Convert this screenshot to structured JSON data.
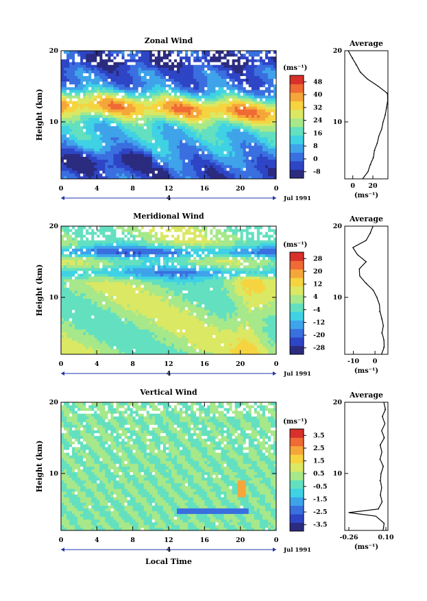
{
  "figure": {
    "xlabel": "Local Time",
    "date_label": "Jul 1991",
    "x_ticks": [
      "0",
      "4",
      "8",
      "12",
      "16",
      "20",
      "0"
    ],
    "y_ticks": [
      "20",
      "10"
    ],
    "day_marker": "4",
    "ylabel": "Height (km)"
  },
  "colors": {
    "scale": [
      "#2b2b7f",
      "#2e45c6",
      "#3a6fe0",
      "#3fa3ea",
      "#3fd2e4",
      "#63e0c0",
      "#a6e88a",
      "#dbe863",
      "#f5d440",
      "#f5a63a",
      "#ef6a34",
      "#d8302b"
    ],
    "axis": "#000000",
    "missing": "#ffffff"
  },
  "chart_data": [
    {
      "type": "heatmap",
      "title": "Zonal Wind",
      "colorbar_unit": "(ms⁻¹)",
      "colorbar_ticks": [
        "48",
        "40",
        "32",
        "24",
        "16",
        "8",
        "0",
        "-8"
      ],
      "colorbar_range": [
        -8,
        56
      ],
      "xlim": [
        0,
        24
      ],
      "ylim": [
        2,
        20
      ],
      "profile": {
        "title": "Average",
        "x_ticks": [
          "0",
          "20"
        ],
        "xlim": [
          -8,
          35
        ],
        "xunit": "(ms⁻¹)",
        "y_ticks": [
          "20",
          "10"
        ],
        "heights": [
          2,
          3,
          4,
          5,
          6,
          7,
          8,
          9,
          10,
          11,
          12,
          13,
          14,
          15,
          16,
          17,
          18,
          19,
          20
        ],
        "values": [
          10,
          15,
          18,
          20,
          22,
          24,
          26,
          29,
          30,
          32,
          34,
          35,
          34,
          25,
          15,
          8,
          3,
          0,
          -4
        ]
      }
    },
    {
      "type": "heatmap",
      "title": "Meridional Wind",
      "colorbar_unit": "(ms⁻¹)",
      "colorbar_ticks": [
        "28",
        "20",
        "12",
        "4",
        "-4",
        "-12",
        "-20",
        "-28"
      ],
      "colorbar_range": [
        -32,
        32
      ],
      "xlim": [
        0,
        24
      ],
      "ylim": [
        2,
        20
      ],
      "profile": {
        "title": "Average",
        "x_ticks": [
          "-10",
          "0"
        ],
        "xlim": [
          -14,
          6
        ],
        "xunit": "(ms⁻¹)",
        "y_ticks": [
          "20",
          "10"
        ],
        "heights": [
          2,
          3,
          4,
          5,
          6,
          7,
          8,
          9,
          10,
          11,
          12,
          13,
          14,
          15,
          16,
          17,
          18,
          19,
          20
        ],
        "values": [
          3,
          4,
          4,
          3,
          4,
          3,
          2,
          2,
          1,
          -1,
          -4,
          -7,
          -7,
          -4,
          -8,
          -10,
          -4,
          -2,
          -1
        ]
      }
    },
    {
      "type": "heatmap",
      "title": "Vertical Wind",
      "colorbar_unit": "(ms⁻¹)",
      "colorbar_ticks": [
        "3.5",
        "2.5",
        "1.5",
        "0.5",
        "-0.5",
        "-1.5",
        "-2.5",
        "-3.5"
      ],
      "colorbar_range": [
        -4,
        4
      ],
      "xlim": [
        0,
        24
      ],
      "ylim": [
        2,
        20
      ],
      "profile": {
        "title": "Average",
        "x_ticks": [
          "-0.26",
          "0.10"
        ],
        "xlim": [
          -0.3,
          0.12
        ],
        "xunit": "(ms⁻¹)",
        "y_ticks": [
          "20",
          "10"
        ],
        "heights": [
          2,
          3,
          4,
          4.5,
          5,
          6,
          7,
          8,
          9,
          10,
          11,
          12,
          13,
          14,
          15,
          16,
          17,
          18,
          19,
          20
        ],
        "values": [
          0.07,
          0.08,
          0.0,
          -0.26,
          0.03,
          0.06,
          0.05,
          0.06,
          0.04,
          0.05,
          0.07,
          0.04,
          0.06,
          0.05,
          0.08,
          0.06,
          0.09,
          0.07,
          0.09,
          0.08
        ]
      }
    }
  ]
}
